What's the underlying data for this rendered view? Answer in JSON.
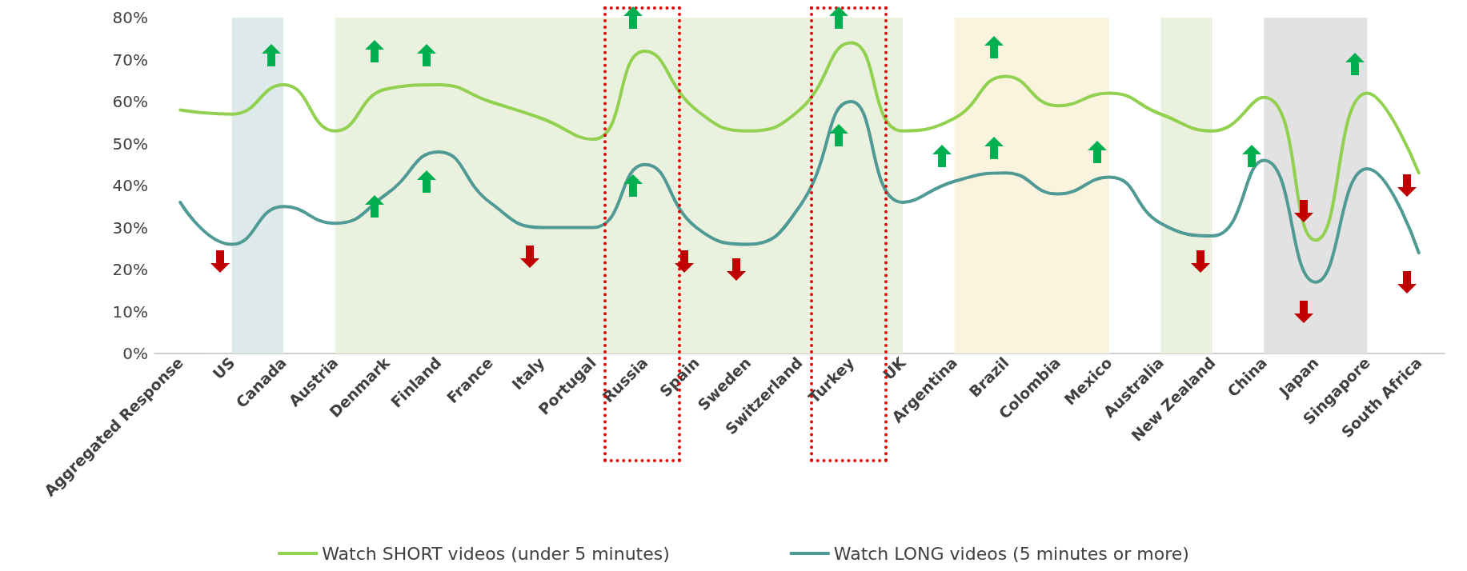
{
  "chart_data": {
    "type": "line",
    "categories": [
      "Aggregated Response",
      "US",
      "Canada",
      "Austria",
      "Denmark",
      "Finland",
      "France",
      "Italy",
      "Portugal",
      "Russia",
      "Spain",
      "Sweden",
      "Switzerland",
      "Turkey",
      "UK",
      "Argentina",
      "Brazil",
      "Colombia",
      "Mexico",
      "Australia",
      "New Zealand",
      "China",
      "Japan",
      "Singapore",
      "South Africa"
    ],
    "series": [
      {
        "name": "Watch SHORT videos (under 5 minutes)",
        "color": "#92d050",
        "values": [
          58,
          57,
          64,
          53,
          63,
          64,
          60,
          56,
          51,
          72,
          58,
          53,
          58,
          74,
          53,
          56,
          66,
          59,
          62,
          57,
          53,
          61,
          27,
          62,
          43
        ]
      },
      {
        "name": "Watch LONG videos (5 minutes or more)",
        "color": "#4f9a94",
        "values": [
          36,
          26,
          35,
          31,
          38,
          48,
          36,
          30,
          30,
          45,
          30,
          26,
          35,
          60,
          36,
          41,
          43,
          38,
          42,
          31,
          28,
          46,
          17,
          44,
          24
        ]
      }
    ],
    "ylim": [
      0,
      80
    ],
    "yticks": [
      {
        "value": 0,
        "label": "0%"
      },
      {
        "value": 10,
        "label": "10%"
      },
      {
        "value": 20,
        "label": "20%"
      },
      {
        "value": 30,
        "label": "30%"
      },
      {
        "value": 40,
        "label": "40%"
      },
      {
        "value": 50,
        "label": "50%"
      },
      {
        "value": 60,
        "label": "60%"
      },
      {
        "value": 70,
        "label": "70%"
      },
      {
        "value": 80,
        "label": "80%"
      }
    ],
    "bands": [
      {
        "axis": "x",
        "from": "US",
        "to": "Canada",
        "color": "#dde9ea"
      },
      {
        "axis": "x",
        "from": "Austria",
        "to": "UK",
        "color": "#ebf1df"
      },
      {
        "axis": "x",
        "from": "Argentina",
        "to": "Mexico",
        "color": "#faf3de"
      },
      {
        "axis": "x",
        "from": "Australia",
        "to": "New Zealand",
        "color": "#ebf1df"
      },
      {
        "axis": "x",
        "from": "China",
        "to": "Singapore",
        "color": "#e2e2e2"
      }
    ],
    "grid": false,
    "legend": "bottom",
    "marker": "none",
    "line_style": "solid"
  }
}
